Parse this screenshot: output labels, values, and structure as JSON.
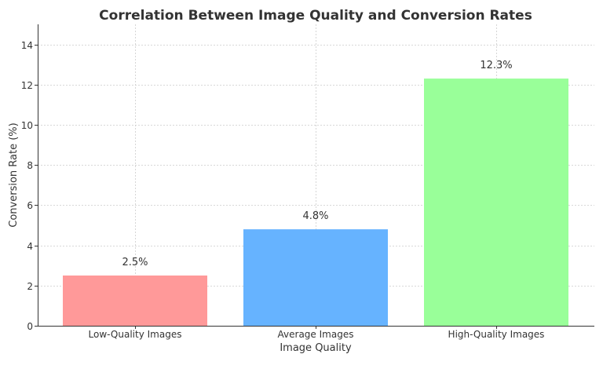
{
  "chart_data": {
    "type": "bar",
    "title": "Correlation Between Image Quality and Conversion Rates",
    "xlabel": "Image Quality",
    "ylabel": "Conversion Rate (%)",
    "categories": [
      "Low-Quality Images",
      "Average Images",
      "High-Quality Images"
    ],
    "values": [
      2.5,
      4.8,
      12.3
    ],
    "value_labels": [
      "2.5%",
      "4.8%",
      "12.3%"
    ],
    "colors": [
      "#ff9999",
      "#66b3ff",
      "#99ff99"
    ],
    "ylim": [
      0,
      15
    ],
    "yticks": [
      0,
      2,
      4,
      6,
      8,
      10,
      12,
      14
    ],
    "grid": true
  }
}
